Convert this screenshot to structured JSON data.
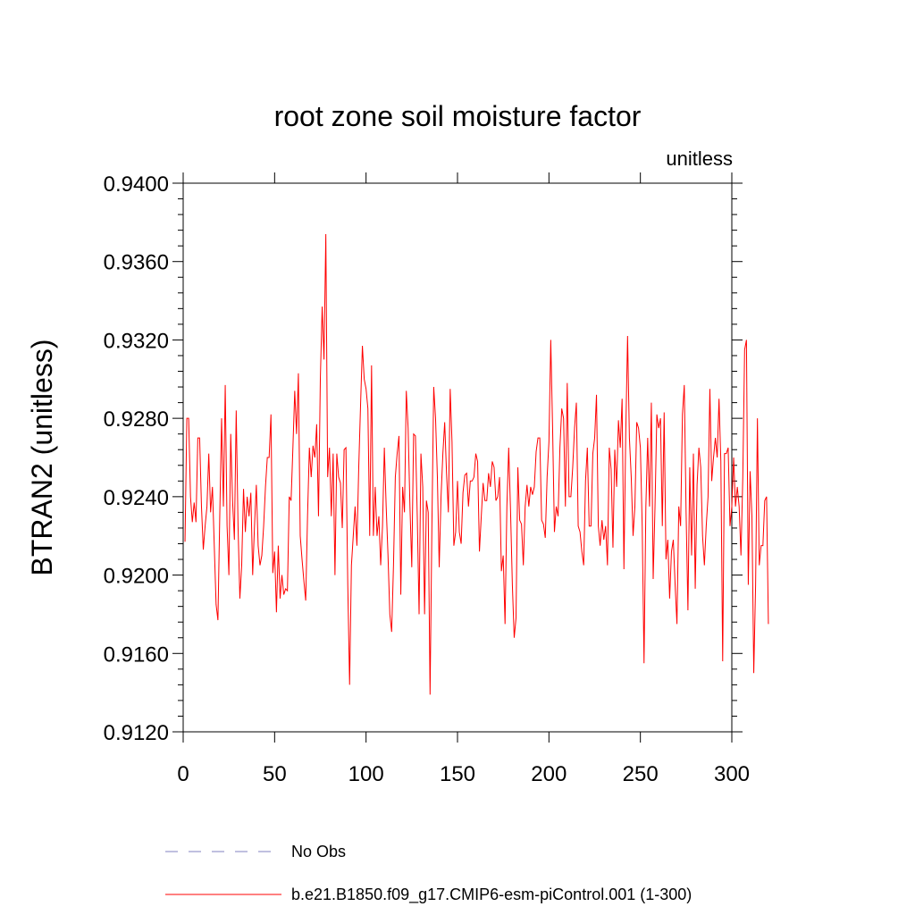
{
  "chart_data": {
    "type": "line",
    "title": "root zone soil moisture factor",
    "units_label": "unitless",
    "xlabel": "",
    "ylabel": "BTRAN2  (unitless)",
    "xlim": [
      0,
      300
    ],
    "ylim": [
      0.912,
      0.94
    ],
    "x_ticks": [
      0,
      50,
      100,
      150,
      200,
      250,
      300
    ],
    "x_tick_labels": [
      "0",
      "50",
      "100",
      "150",
      "200",
      "250",
      "300"
    ],
    "y_ticks": [
      0.912,
      0.916,
      0.92,
      0.924,
      0.928,
      0.932,
      0.936,
      0.94
    ],
    "y_tick_labels": [
      "0.9120",
      "0.9160",
      "0.9200",
      "0.9240",
      "0.9280",
      "0.9320",
      "0.9360",
      "0.9400"
    ],
    "grid": false,
    "legend_position": "bottom",
    "series": [
      {
        "name": "No Obs",
        "color": "#8080c0",
        "style": "dashed",
        "values": []
      },
      {
        "name": "b.e21.B1850.f09_g17.CMIP6-esm-piControl.001 (1-300)",
        "color": "#ff0000",
        "style": "solid",
        "x_start": 1,
        "values": [
          0.9217,
          0.928,
          0.928,
          0.924,
          0.9227,
          0.9237,
          0.9227,
          0.927,
          0.927,
          0.9235,
          0.9213,
          0.9225,
          0.9235,
          0.9262,
          0.9232,
          0.9245,
          0.9215,
          0.9185,
          0.9177,
          0.923,
          0.928,
          0.9235,
          0.9297,
          0.9225,
          0.92,
          0.9272,
          0.9238,
          0.9218,
          0.9284,
          0.9225,
          0.9188,
          0.9205,
          0.9244,
          0.9222,
          0.924,
          0.923,
          0.9242,
          0.92,
          0.9225,
          0.9246,
          0.9215,
          0.9205,
          0.921,
          0.9225,
          0.9245,
          0.926,
          0.926,
          0.9282,
          0.9201,
          0.9212,
          0.9181,
          0.9215,
          0.9188,
          0.92,
          0.919,
          0.9193,
          0.9192,
          0.924,
          0.9238,
          0.9265,
          0.9294,
          0.9272,
          0.9303,
          0.922,
          0.9208,
          0.9197,
          0.9187,
          0.923,
          0.9265,
          0.925,
          0.9266,
          0.926,
          0.9277,
          0.923,
          0.93,
          0.9337,
          0.931,
          0.9374,
          0.925,
          0.9265,
          0.923,
          0.9262,
          0.92,
          0.9262,
          0.925,
          0.9247,
          0.9224,
          0.9264,
          0.9265,
          0.9195,
          0.9144,
          0.9205,
          0.922,
          0.9235,
          0.9215,
          0.9255,
          0.9287,
          0.9317,
          0.93,
          0.9295,
          0.9285,
          0.922,
          0.9307,
          0.922,
          0.9245,
          0.922,
          0.923,
          0.9205,
          0.9225,
          0.9265,
          0.9235,
          0.921,
          0.918,
          0.9171,
          0.9205,
          0.925,
          0.9262,
          0.9271,
          0.919,
          0.9245,
          0.9232,
          0.9294,
          0.9275,
          0.9235,
          0.9204,
          0.9272,
          0.9271,
          0.923,
          0.918,
          0.9262,
          0.9245,
          0.918,
          0.9238,
          0.9232,
          0.9139,
          0.9225,
          0.9296,
          0.928,
          0.925,
          0.9204,
          0.924,
          0.9262,
          0.9278,
          0.9252,
          0.9232,
          0.9295,
          0.9268,
          0.9215,
          0.9222,
          0.9248,
          0.9222,
          0.9216,
          0.9242,
          0.9251,
          0.9252,
          0.9235,
          0.9248,
          0.9248,
          0.925,
          0.9262,
          0.9258,
          0.9212,
          0.923,
          0.9247,
          0.9238,
          0.9238,
          0.9252,
          0.9245,
          0.9258,
          0.9255,
          0.9238,
          0.924,
          0.925,
          0.9202,
          0.921,
          0.9175,
          0.9235,
          0.9265,
          0.9233,
          0.9195,
          0.9168,
          0.9178,
          0.9255,
          0.9228,
          0.9226,
          0.9205,
          0.9235,
          0.9246,
          0.9235,
          0.9245,
          0.9241,
          0.9245,
          0.9263,
          0.927,
          0.927,
          0.9228,
          0.9226,
          0.9219,
          0.925,
          0.9268,
          0.932,
          0.9275,
          0.9222,
          0.9235,
          0.923,
          0.9265,
          0.9285,
          0.928,
          0.9235,
          0.9298,
          0.924,
          0.924,
          0.9255,
          0.9275,
          0.9288,
          0.9225,
          0.9222,
          0.9212,
          0.9205,
          0.9248,
          0.9265,
          0.9225,
          0.9225,
          0.9262,
          0.927,
          0.9292,
          0.9225,
          0.9215,
          0.9228,
          0.9218,
          0.9225,
          0.9205,
          0.9265,
          0.9254,
          0.9214,
          0.9264,
          0.9245,
          0.9279,
          0.9265,
          0.929,
          0.9203,
          0.9272,
          0.9322,
          0.927,
          0.925,
          0.922,
          0.9235,
          0.9278,
          0.9275,
          0.9265,
          0.9225,
          0.9155,
          0.9235,
          0.927,
          0.9235,
          0.9288,
          0.9198,
          0.9235,
          0.9282,
          0.9275,
          0.928,
          0.9225,
          0.9283,
          0.9208,
          0.9218,
          0.9188,
          0.9212,
          0.9218,
          0.9195,
          0.9175,
          0.9235,
          0.9225,
          0.9282,
          0.9297,
          0.9232,
          0.9182,
          0.9255,
          0.921,
          0.9262,
          0.9193,
          0.9246,
          0.9265,
          0.9255,
          0.922,
          0.9205,
          0.9225,
          0.924,
          0.9295,
          0.9248,
          0.926,
          0.927,
          0.926,
          0.929,
          0.9258,
          0.9156,
          0.9262,
          0.9262,
          0.9265,
          0.9225,
          0.9235,
          0.926,
          0.9235,
          0.9245,
          0.9235,
          0.921,
          0.925,
          0.9315,
          0.932,
          0.9195,
          0.9253,
          0.923,
          0.915,
          0.9195,
          0.928,
          0.9205,
          0.9215,
          0.9215,
          0.9238,
          0.924,
          0.9175
        ]
      }
    ]
  }
}
